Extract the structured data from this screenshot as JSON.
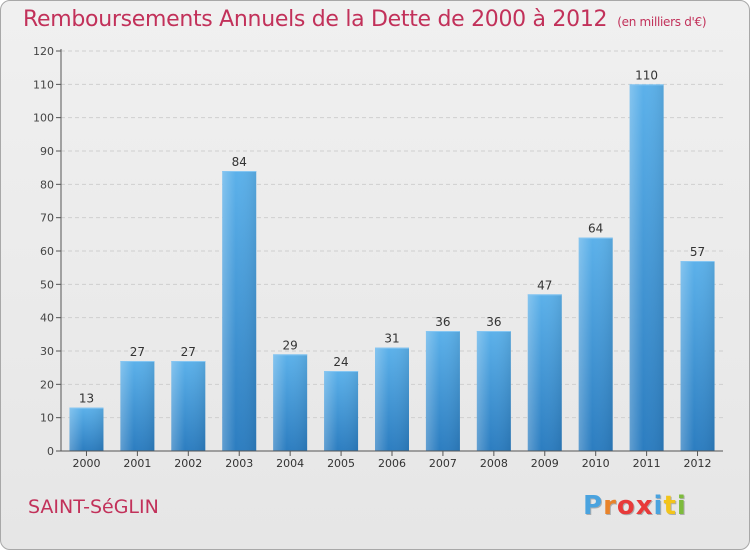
{
  "header": {
    "title": "Remboursements Annuels de la Dette de 2000 à 2012",
    "subtitle": "(en milliers d'€)"
  },
  "footer": {
    "commune": "SAINT-SéGLIN",
    "logo_letters": [
      "P",
      "r",
      "o",
      "x",
      "i",
      "t",
      "i"
    ],
    "logo_colors": [
      "#4aa3df",
      "#e8832a",
      "#e83a3a",
      "#e83a3a",
      "#4aa3df",
      "#f2c41b",
      "#7dbb3c"
    ]
  },
  "chart_data": {
    "type": "bar",
    "title": "Remboursements Annuels de la Dette de 2000 à 2012",
    "subtitle": "(en milliers d'€)",
    "xlabel": "",
    "ylabel": "",
    "categories": [
      "2000",
      "2001",
      "2002",
      "2003",
      "2004",
      "2005",
      "2006",
      "2007",
      "2008",
      "2009",
      "2010",
      "2011",
      "2012"
    ],
    "values": [
      13,
      27,
      27,
      84,
      29,
      24,
      31,
      36,
      36,
      47,
      64,
      110,
      57
    ],
    "ylim": [
      0,
      120
    ],
    "yticks": [
      0,
      10,
      20,
      30,
      40,
      50,
      60,
      70,
      80,
      90,
      100,
      110,
      120
    ],
    "grid": true,
    "bar_color": "#4a9ede"
  }
}
